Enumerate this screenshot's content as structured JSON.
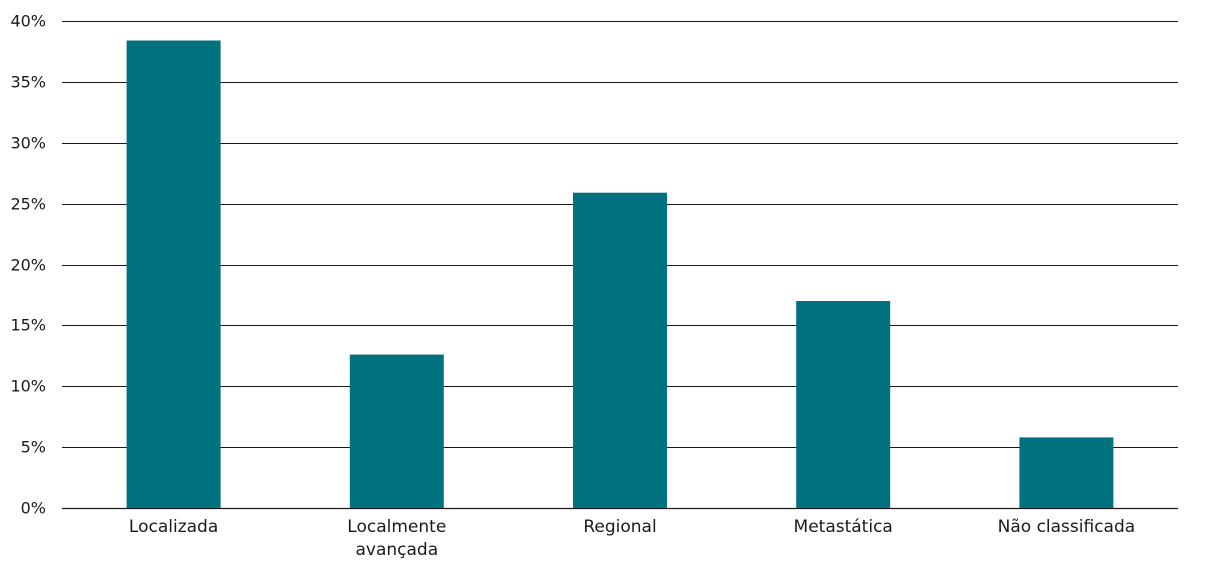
{
  "chart_data": {
    "type": "bar",
    "title": "",
    "xlabel": "",
    "ylabel": "",
    "categories": [
      [
        "Localizada"
      ],
      [
        "Localmente",
        "avançada"
      ],
      [
        "Regional"
      ],
      [
        "Metastática"
      ],
      [
        "Não classificada"
      ]
    ],
    "values": [
      38.4,
      12.6,
      25.9,
      17.0,
      5.8
    ],
    "value_unit": "%",
    "ylim": [
      0,
      40
    ],
    "yticks": [
      {
        "value": 0,
        "label": "0%"
      },
      {
        "value": 5,
        "label": "5%"
      },
      {
        "value": 10,
        "label": "10%"
      },
      {
        "value": 15,
        "label": "15%"
      },
      {
        "value": 20,
        "label": "20%"
      },
      {
        "value": 25,
        "label": "25%"
      },
      {
        "value": 30,
        "label": "30%"
      },
      {
        "value": 35,
        "label": "35%"
      },
      {
        "value": 40,
        "label": "40%"
      }
    ],
    "grid": true,
    "legend": "none",
    "colors": {
      "bar": "#00727f",
      "grid": "#1a1a1a",
      "text": "#1a1a1a"
    }
  }
}
